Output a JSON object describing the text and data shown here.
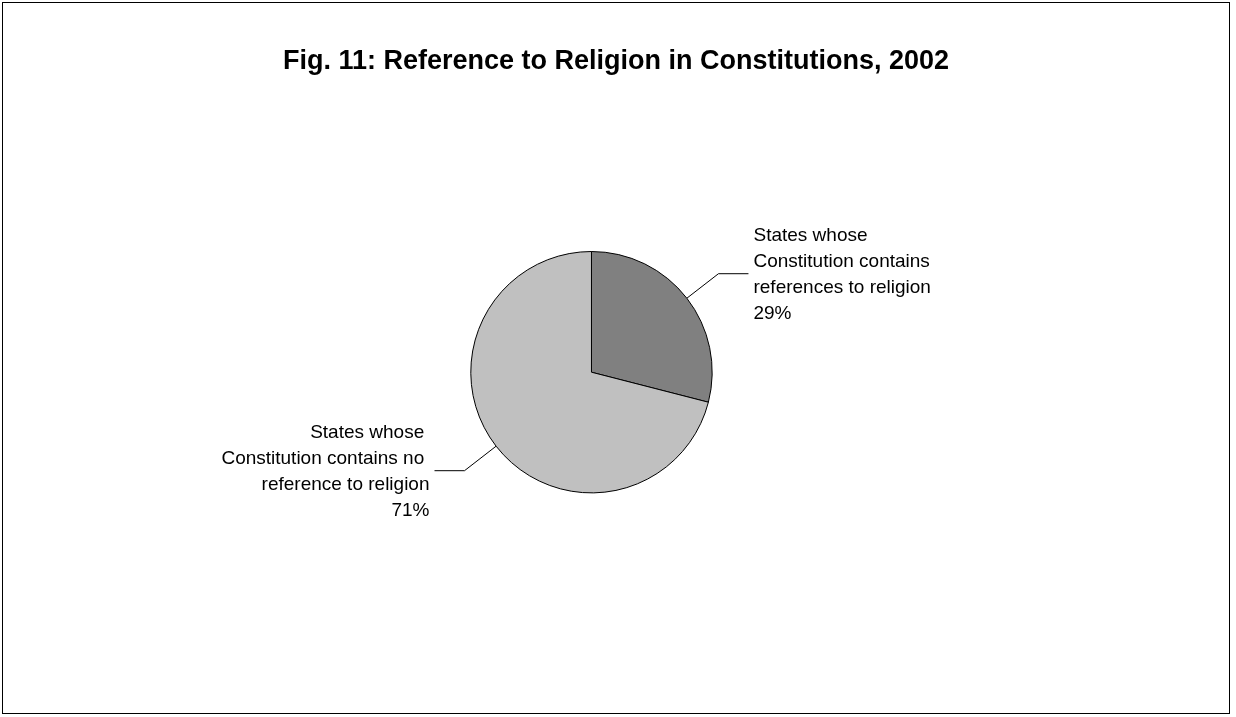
{
  "chart_data": {
    "type": "pie",
    "title": "Fig. 11: Reference to Religion in Constitutions, 2002",
    "categories": [
      "States whose Constitution contains references to religion",
      "States whose Constitution contains no reference to religion"
    ],
    "values": [
      29,
      71
    ],
    "value_labels": [
      "29%",
      "71%"
    ],
    "colors": [
      "#808080",
      "#c0c0c0"
    ],
    "legend": false
  }
}
